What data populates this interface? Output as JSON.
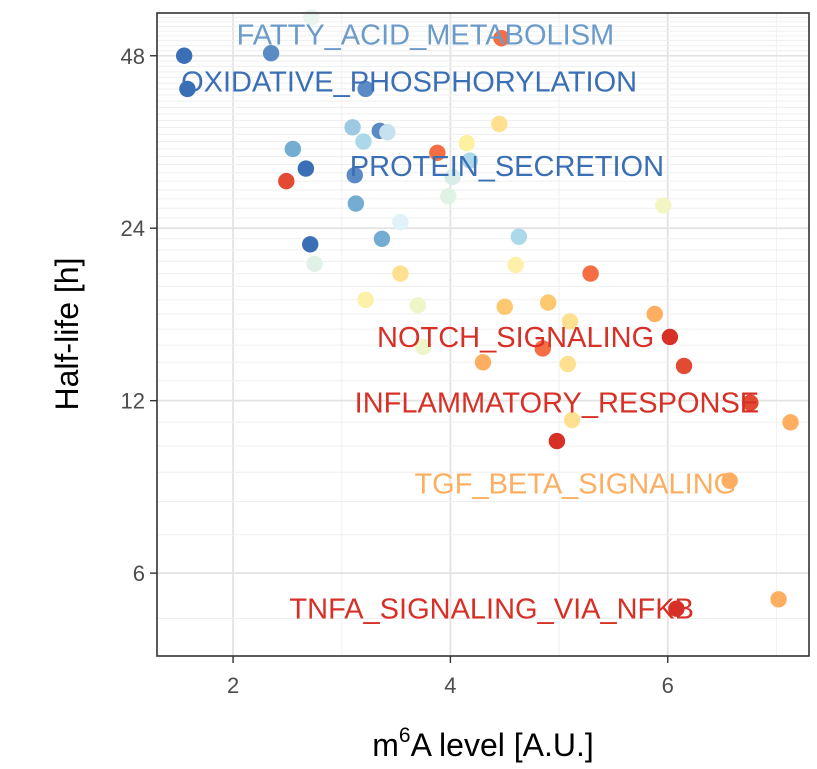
{
  "chart_data": {
    "type": "scatter",
    "xlabel": "m6A level [A.U.]",
    "xlabel_base": "m",
    "xlabel_sup": "6",
    "xlabel_rest": "A level [A.U.]",
    "ylabel": "Half-life [h]",
    "y_scale": "log2",
    "xlim": [
      1.3,
      7.3
    ],
    "ylim": [
      4.3,
      57
    ],
    "x_ticks": [
      2,
      4,
      6
    ],
    "y_ticks": [
      6,
      12,
      24,
      48
    ],
    "x_tick_labels": [
      "2",
      "4",
      "6"
    ],
    "y_tick_labels": [
      "6",
      "12",
      "24",
      "48"
    ],
    "grid": true,
    "legend": "none",
    "color_scale": [
      "#d73027",
      "#f46d43",
      "#fdae61",
      "#fee090",
      "#e0f3f8",
      "#abd9e9",
      "#74add1",
      "#4575b4"
    ],
    "points": [
      {
        "x": 1.55,
        "y": 48.0,
        "color": "#3b6fb5"
      },
      {
        "x": 1.58,
        "y": 42.0,
        "color": "#3b6fb5"
      },
      {
        "x": 2.35,
        "y": 48.5,
        "color": "#5a8bc4"
      },
      {
        "x": 2.72,
        "y": 56.0,
        "color": "#e8f4ee"
      },
      {
        "x": 4.47,
        "y": 51.5,
        "color": "#f46d43"
      },
      {
        "x": 3.22,
        "y": 42.0,
        "color": "#5a8bc4"
      },
      {
        "x": 3.1,
        "y": 36.0,
        "color": "#9ec9e2"
      },
      {
        "x": 3.35,
        "y": 35.5,
        "color": "#5a8bc4"
      },
      {
        "x": 3.42,
        "y": 35.3,
        "color": "#c5e2ee"
      },
      {
        "x": 3.2,
        "y": 34.0,
        "color": "#abd9e9"
      },
      {
        "x": 4.45,
        "y": 36.5,
        "color": "#fee090"
      },
      {
        "x": 2.55,
        "y": 33.0,
        "color": "#74add1"
      },
      {
        "x": 2.67,
        "y": 30.5,
        "color": "#3b6fb5"
      },
      {
        "x": 2.49,
        "y": 29.0,
        "color": "#e34a33"
      },
      {
        "x": 3.12,
        "y": 29.7,
        "color": "#5a8bc4"
      },
      {
        "x": 3.88,
        "y": 32.5,
        "color": "#f46d43"
      },
      {
        "x": 4.15,
        "y": 33.8,
        "color": "#fdf0a0"
      },
      {
        "x": 4.18,
        "y": 31.5,
        "color": "#abd9e9"
      },
      {
        "x": 4.02,
        "y": 29.5,
        "color": "#d8ede8"
      },
      {
        "x": 3.13,
        "y": 26.5,
        "color": "#74add1"
      },
      {
        "x": 3.98,
        "y": 27.3,
        "color": "#e0f1e6"
      },
      {
        "x": 5.96,
        "y": 26.3,
        "color": "#f4f5c4"
      },
      {
        "x": 3.54,
        "y": 24.6,
        "color": "#e0f3f8"
      },
      {
        "x": 4.63,
        "y": 23.2,
        "color": "#abd9e9"
      },
      {
        "x": 3.37,
        "y": 23.0,
        "color": "#74add1"
      },
      {
        "x": 2.71,
        "y": 22.5,
        "color": "#3b6fb5"
      },
      {
        "x": 2.75,
        "y": 20.8,
        "color": "#e0f1e6"
      },
      {
        "x": 3.54,
        "y": 20.0,
        "color": "#fee090"
      },
      {
        "x": 4.6,
        "y": 20.7,
        "color": "#fef0a8"
      },
      {
        "x": 5.29,
        "y": 20.0,
        "color": "#f46d43"
      },
      {
        "x": 3.22,
        "y": 18.0,
        "color": "#fef0a8"
      },
      {
        "x": 3.7,
        "y": 17.6,
        "color": "#eef5c8"
      },
      {
        "x": 4.5,
        "y": 17.5,
        "color": "#fdc870"
      },
      {
        "x": 4.9,
        "y": 17.8,
        "color": "#fdc870"
      },
      {
        "x": 5.1,
        "y": 16.5,
        "color": "#fee090"
      },
      {
        "x": 5.88,
        "y": 17.0,
        "color": "#fdae61"
      },
      {
        "x": 6.02,
        "y": 15.5,
        "color": "#d73027"
      },
      {
        "x": 3.75,
        "y": 14.9,
        "color": "#eef5c8"
      },
      {
        "x": 4.85,
        "y": 14.8,
        "color": "#f46d43"
      },
      {
        "x": 4.3,
        "y": 14.0,
        "color": "#fdae61"
      },
      {
        "x": 5.08,
        "y": 13.9,
        "color": "#fee090"
      },
      {
        "x": 6.15,
        "y": 13.8,
        "color": "#e34a33"
      },
      {
        "x": 6.76,
        "y": 11.9,
        "color": "#e34a33"
      },
      {
        "x": 7.13,
        "y": 11.0,
        "color": "#fdae61"
      },
      {
        "x": 5.12,
        "y": 11.1,
        "color": "#fee090"
      },
      {
        "x": 4.98,
        "y": 10.2,
        "color": "#d73027"
      },
      {
        "x": 6.57,
        "y": 8.7,
        "color": "#fdae61"
      },
      {
        "x": 7.02,
        "y": 5.4,
        "color": "#fdae61"
      },
      {
        "x": 6.08,
        "y": 5.2,
        "color": "#d73027"
      }
    ],
    "annotations": [
      {
        "text": "FATTY_ACID_METABOLISM",
        "x": 3.77,
        "y": 52.3,
        "color": "#6b9bcb"
      },
      {
        "text": "OXIDATIVE_PHOSPHORYLATION",
        "x": 3.62,
        "y": 43.3,
        "color": "#3b6fb5"
      },
      {
        "text": "PROTEIN_SECRETION",
        "x": 4.52,
        "y": 30.8,
        "color": "#3b6fb5"
      },
      {
        "text": "NOTCH_SIGNALING",
        "x": 4.6,
        "y": 15.5,
        "color": "#d73027"
      },
      {
        "text": "INFLAMMATORY_RESPONSE",
        "x": 4.98,
        "y": 11.9,
        "color": "#d73027"
      },
      {
        "text": "TGF_BETA_SIGNALING",
        "x": 5.15,
        "y": 8.6,
        "color": "#fdae61"
      },
      {
        "text": "TNFA_SIGNALING_VIA_NFKB",
        "x": 4.38,
        "y": 5.2,
        "color": "#d73027"
      }
    ]
  }
}
